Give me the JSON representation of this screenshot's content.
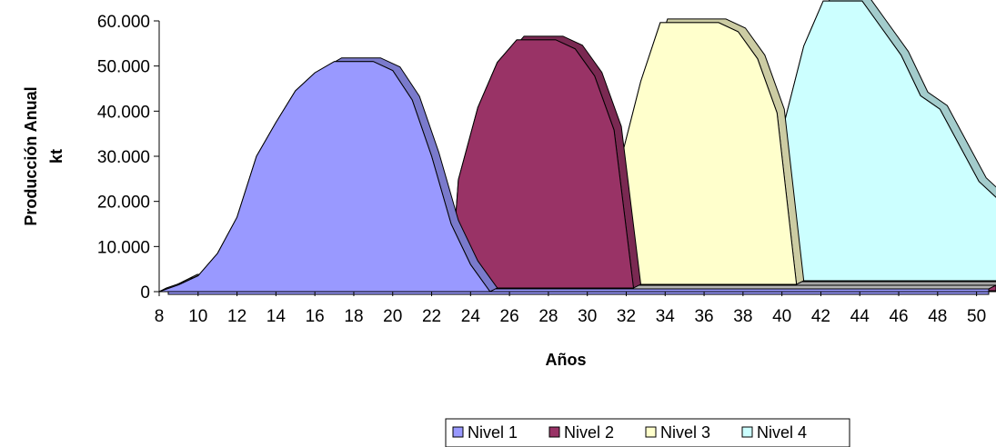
{
  "chart_data": {
    "type": "area",
    "title": "",
    "xlabel": "Años",
    "ylabel_line1": "Producción Anual",
    "ylabel_line2": "kt",
    "ylim": [
      0,
      60000
    ],
    "xlim": [
      8,
      51
    ],
    "y_ticks": [
      "0",
      "10.000",
      "20.000",
      "30.000",
      "40.000",
      "50.000",
      "60.000"
    ],
    "x_ticks": [
      "8",
      "10",
      "12",
      "14",
      "16",
      "18",
      "20",
      "22",
      "24",
      "26",
      "28",
      "30",
      "32",
      "34",
      "36",
      "38",
      "40",
      "42",
      "44",
      "46",
      "48",
      "50"
    ],
    "legend_position": "bottom-right",
    "grid": false,
    "series": [
      {
        "name": "Nivel 1",
        "color": "#9999ff",
        "x": [
          8,
          9,
          10,
          11,
          12,
          13,
          14,
          15,
          16,
          17,
          18,
          19,
          20,
          21,
          22,
          23,
          24,
          25
        ],
        "y": [
          0,
          1500,
          3500,
          8500,
          16500,
          30000,
          37500,
          44500,
          48500,
          51000,
          51000,
          51000,
          49000,
          42500,
          30000,
          15000,
          6000,
          0
        ]
      },
      {
        "name": "Nivel 2",
        "color": "#993366",
        "x": [
          22.6,
          23,
          24,
          25,
          26,
          27,
          28,
          29,
          30,
          31,
          32
        ],
        "y": [
          0,
          24000,
          40000,
          50000,
          55000,
          55000,
          55000,
          53000,
          47000,
          35000,
          0
        ]
      },
      {
        "name": "Nivel 3",
        "color": "#ffffcc",
        "x": [
          30.4,
          31,
          32,
          33,
          34,
          35,
          36,
          37,
          38,
          39,
          40
        ],
        "y": [
          0,
          28000,
          45000,
          58000,
          58000,
          58000,
          58000,
          56000,
          50000,
          38000,
          0
        ]
      },
      {
        "name": "Nivel 4",
        "color": "#ccffff",
        "x": [
          38.3,
          39,
          40,
          41,
          42,
          43,
          44,
          45,
          46,
          47,
          48,
          49,
          50,
          51
        ],
        "y": [
          0,
          35000,
          52000,
          62000,
          62000,
          62000,
          56000,
          50000,
          41000,
          38000,
          30000,
          22000,
          18000,
          14000
        ]
      }
    ]
  },
  "legend": {
    "items": [
      {
        "label": "Nivel 1",
        "color": "#9999ff"
      },
      {
        "label": "Nivel 2",
        "color": "#993366"
      },
      {
        "label": "Nivel 3",
        "color": "#ffffcc"
      },
      {
        "label": "Nivel 4",
        "color": "#ccffff"
      }
    ]
  }
}
